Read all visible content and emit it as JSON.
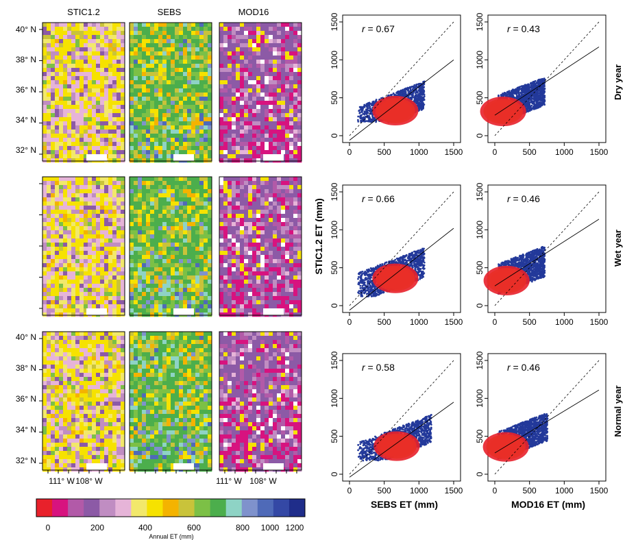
{
  "maps": {
    "column_titles": [
      "STIC1.2",
      "SEBS",
      "MOD16"
    ],
    "lat_ticks": [
      "40° N",
      "38° N",
      "36° N",
      "34° N",
      "32° N"
    ],
    "lon_ticks_left": [
      "111° W",
      "108° W"
    ],
    "lon_ticks_right": [
      "111° W",
      "108° W"
    ]
  },
  "colorbar": {
    "label": "Annual ET (mm)",
    "ticks": [
      "0",
      "200",
      "400",
      "600",
      "800",
      "1000",
      "1200"
    ],
    "colors": [
      "#e8212b",
      "#d7137f",
      "#b25aa8",
      "#8c5aa6",
      "#c08dc2",
      "#e6b4d8",
      "#f2e86b",
      "#f6e200",
      "#f4b300",
      "#c9c33a",
      "#7cc046",
      "#4cae4c",
      "#8ed3c5",
      "#7f92cc",
      "#4f6ab8",
      "#3448a5",
      "#1f2d8a"
    ]
  },
  "scatter": {
    "ylabel": "STIC1.2 ET (mm)",
    "xlabels": [
      "SEBS ET (mm)",
      "MOD16 ET (mm)"
    ],
    "row_labels": [
      "Dry year",
      "Wet year",
      "Normal year"
    ],
    "axis_ticks": [
      "0",
      "500",
      "1000",
      "1500"
    ]
  },
  "chart_data": [
    {
      "type": "scatter",
      "x_variable": "SEBS ET",
      "y_variable": "STIC1.2 ET",
      "row": "Dry year",
      "r_prefix": "r",
      "r_value": "= 0.67",
      "xlim": [
        0,
        1500
      ],
      "ylim": [
        0,
        1500
      ],
      "fit_line": {
        "x": [
          0,
          1500
        ],
        "y": [
          -60,
          1000
        ]
      },
      "cloud": {
        "x_range": [
          120,
          1080
        ],
        "y_range": [
          180,
          1000
        ],
        "peak": [
          660,
          330
        ]
      }
    },
    {
      "type": "scatter",
      "x_variable": "MOD16 ET",
      "y_variable": "STIC1.2 ET",
      "row": "Dry year",
      "r_prefix": "r",
      "r_value": "= 0.43",
      "xlim": [
        0,
        1500
      ],
      "ylim": [
        0,
        1500
      ],
      "fit_line": {
        "x": [
          0,
          1500
        ],
        "y": [
          270,
          1170
        ]
      },
      "cloud": {
        "x_range": [
          40,
          720
        ],
        "y_range": [
          180,
          1000
        ],
        "peak": [
          120,
          320
        ]
      }
    },
    {
      "type": "scatter",
      "x_variable": "SEBS ET",
      "y_variable": "STIC1.2 ET",
      "row": "Wet year",
      "r_prefix": "r",
      "r_value": "= 0.66",
      "xlim": [
        0,
        1500
      ],
      "ylim": [
        0,
        1500
      ],
      "fit_line": {
        "x": [
          0,
          1500
        ],
        "y": [
          -60,
          1020
        ]
      },
      "cloud": {
        "x_range": [
          120,
          1080
        ],
        "y_range": [
          120,
          1000
        ],
        "peak": [
          660,
          360
        ]
      }
    },
    {
      "type": "scatter",
      "x_variable": "MOD16 ET",
      "y_variable": "STIC1.2 ET",
      "row": "Wet year",
      "r_prefix": "r",
      "r_value": "= 0.46",
      "xlim": [
        0,
        1500
      ],
      "ylim": [
        0,
        1500
      ],
      "fit_line": {
        "x": [
          0,
          1500
        ],
        "y": [
          260,
          1140
        ]
      },
      "cloud": {
        "x_range": [
          40,
          720
        ],
        "y_range": [
          100,
          1000
        ],
        "peak": [
          170,
          330
        ]
      }
    },
    {
      "type": "scatter",
      "x_variable": "SEBS ET",
      "y_variable": "STIC1.2 ET",
      "row": "Normal year",
      "r_prefix": "r",
      "r_value": "= 0.58",
      "xlim": [
        0,
        1500
      ],
      "ylim": [
        0,
        1500
      ],
      "fit_line": {
        "x": [
          0,
          1500
        ],
        "y": [
          -40,
          950
        ]
      },
      "cloud": {
        "x_range": [
          120,
          1180
        ],
        "y_range": [
          180,
          1000
        ],
        "peak": [
          680,
          370
        ]
      }
    },
    {
      "type": "scatter",
      "x_variable": "MOD16 ET",
      "y_variable": "STIC1.2 ET",
      "row": "Normal year",
      "r_prefix": "r",
      "r_value": "= 0.46",
      "xlim": [
        0,
        1500
      ],
      "ylim": [
        0,
        1500
      ],
      "fit_line": {
        "x": [
          0,
          1500
        ],
        "y": [
          280,
          1110
        ]
      },
      "cloud": {
        "x_range": [
          40,
          760
        ],
        "y_range": [
          180,
          1000
        ],
        "peak": [
          160,
          360
        ]
      }
    }
  ]
}
